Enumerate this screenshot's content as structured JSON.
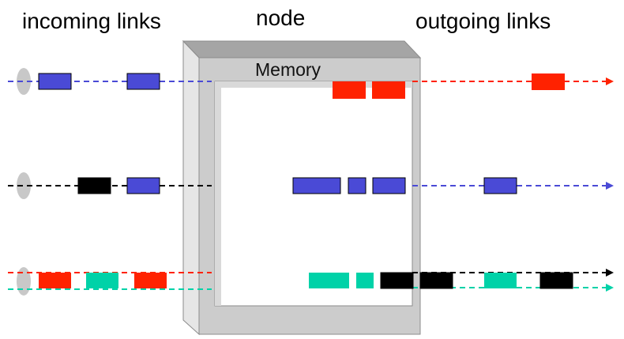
{
  "labels": {
    "incoming": "incoming links",
    "node": "node",
    "outgoing": "outgoing links",
    "memory": "Memory"
  },
  "colors": {
    "blue": "#4a4ad6",
    "red": "#ff2200",
    "black": "#000000",
    "teal": "#00d2a8",
    "frame_face": "#cccccc",
    "frame_side": "#e6e6e6",
    "frame_top": "#a5a5a5",
    "port": "#c8c8c8"
  }
}
